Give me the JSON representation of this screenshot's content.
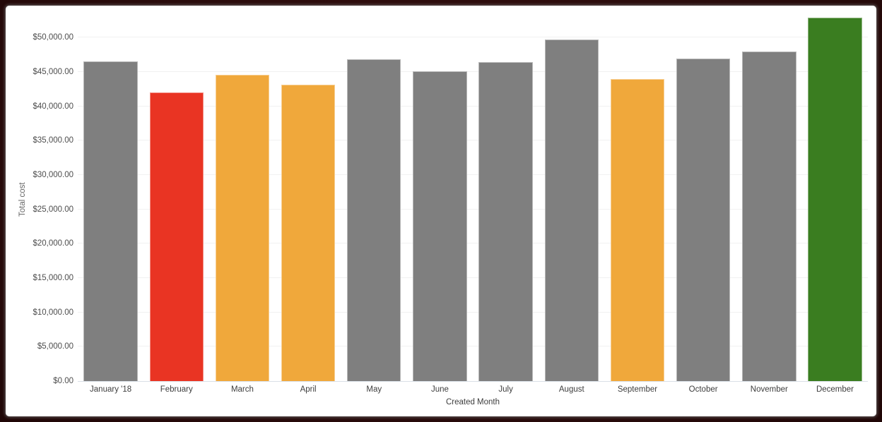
{
  "window": {
    "frame_color": "#2b0c0c",
    "card_color": "#ffffff"
  },
  "colors": {
    "bar_default": "#7f7f7f",
    "bar_red": "#e93423",
    "bar_orange": "#f0a83b",
    "bar_green": "#3a7d20",
    "gridline": "#f1f1f1",
    "axis_baseline": "#d9dfe7",
    "tick_text": "#4d4d4d",
    "category_text": "#3d3d3d",
    "axis_title_text": "#666666"
  },
  "chart_data": {
    "type": "bar",
    "title": "",
    "xlabel": "Created Month",
    "ylabel": "Total cost",
    "categories": [
      "January '18",
      "February",
      "March",
      "April",
      "May",
      "June",
      "July",
      "August",
      "September",
      "October",
      "November",
      "December"
    ],
    "values": [
      46500,
      42000,
      44600,
      43100,
      46800,
      45100,
      46400,
      49700,
      44000,
      46900,
      48000,
      52900
    ],
    "bar_colors": [
      "#7f7f7f",
      "#e93423",
      "#f0a83b",
      "#f0a83b",
      "#7f7f7f",
      "#7f7f7f",
      "#7f7f7f",
      "#7f7f7f",
      "#f0a83b",
      "#7f7f7f",
      "#7f7f7f",
      "#3a7d20"
    ],
    "ylim": [
      0,
      52900
    ],
    "ytick_values": [
      0,
      5000,
      10000,
      15000,
      20000,
      25000,
      30000,
      35000,
      40000,
      45000,
      50000
    ],
    "ytick_labels": [
      "$0.00",
      "$5,000.00",
      "$10,000.00",
      "$15,000.00",
      "$20,000.00",
      "$25,000.00",
      "$30,000.00",
      "$35,000.00",
      "$40,000.00",
      "$45,000.00",
      "$50,000.00"
    ],
    "grid": "horizontal",
    "legend": "none"
  }
}
